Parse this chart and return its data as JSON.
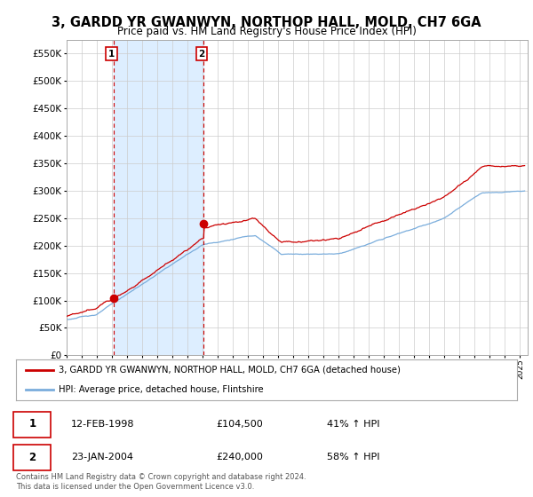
{
  "title": "3, GARDD YR GWANWYN, NORTHOP HALL, MOLD, CH7 6GA",
  "subtitle": "Price paid vs. HM Land Registry's House Price Index (HPI)",
  "title_fontsize": 10.5,
  "subtitle_fontsize": 8.5,
  "ytick_values": [
    0,
    50000,
    100000,
    150000,
    200000,
    250000,
    300000,
    350000,
    400000,
    450000,
    500000,
    550000
  ],
  "ylim": [
    0,
    575000
  ],
  "xlim_start": 1995.0,
  "xlim_end": 2025.5,
  "purchase1_year": 1998.12,
  "purchase1_price": 104500,
  "purchase2_year": 2004.07,
  "purchase2_price": 240000,
  "house_line_color": "#cc0000",
  "hpi_line_color": "#7aaddc",
  "shade_color": "#ddeeff",
  "grid_color": "#cccccc",
  "vline_color": "#cc0000",
  "background_color": "#ffffff",
  "legend_house_label": "3, GARDD YR GWANWYN, NORTHOP HALL, MOLD, CH7 6GA (detached house)",
  "legend_hpi_label": "HPI: Average price, detached house, Flintshire",
  "table_row1": [
    "1",
    "12-FEB-1998",
    "£104,500",
    "41% ↑ HPI"
  ],
  "table_row2": [
    "2",
    "23-JAN-2004",
    "£240,000",
    "58% ↑ HPI"
  ],
  "footer": "Contains HM Land Registry data © Crown copyright and database right 2024.\nThis data is licensed under the Open Government Licence v3.0."
}
